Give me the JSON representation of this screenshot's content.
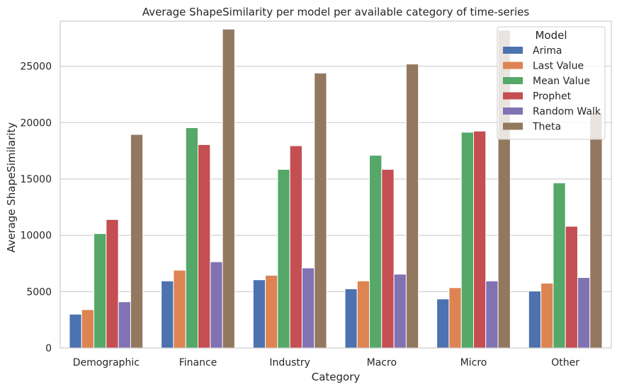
{
  "chart_data": {
    "type": "bar",
    "title": "Average ShapeSimilarity per model per available category of time-series",
    "xlabel": "Category",
    "ylabel": "Average ShapeSimilarity",
    "ylim": [
      0,
      29000
    ],
    "yticks": [
      0,
      5000,
      10000,
      15000,
      20000,
      25000
    ],
    "grid": "horizontal",
    "legend_title": "Model",
    "legend_position": "top-right",
    "categories": [
      "Demographic",
      "Finance",
      "Industry",
      "Macro",
      "Micro",
      "Other"
    ],
    "series": [
      {
        "name": "Arima",
        "color": "#4c72b0",
        "values": [
          3000,
          5950,
          6050,
          5250,
          4350,
          5050
        ]
      },
      {
        "name": "Last Value",
        "color": "#dd8452",
        "values": [
          3400,
          6900,
          6450,
          5950,
          5350,
          5750
        ]
      },
      {
        "name": "Mean Value",
        "color": "#55a868",
        "values": [
          10150,
          19550,
          15850,
          17100,
          19150,
          14650
        ]
      },
      {
        "name": "Prophet",
        "color": "#c44e52",
        "values": [
          11400,
          18050,
          17950,
          15850,
          19250,
          10800
        ]
      },
      {
        "name": "Random Walk",
        "color": "#8172b3",
        "values": [
          4100,
          7650,
          7100,
          6550,
          5950,
          6250
        ]
      },
      {
        "name": "Theta",
        "color": "#937860",
        "values": [
          18950,
          28300,
          24400,
          25200,
          28200,
          20900
        ]
      }
    ]
  }
}
